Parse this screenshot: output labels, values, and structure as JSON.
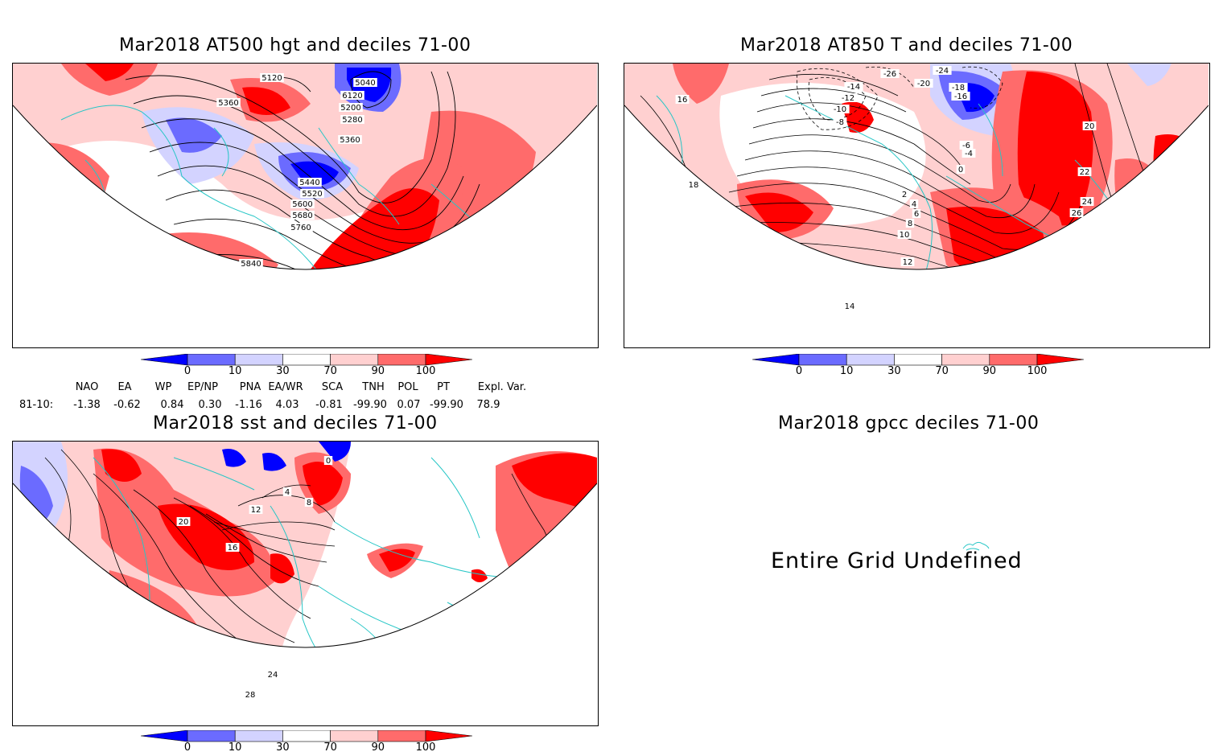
{
  "panels": {
    "hgt500": {
      "title": "Mar2018 AT500 hgt and deciles 71-00",
      "contour_labels": [
        "5040",
        "5120",
        "6120",
        "5200",
        "5280",
        "5360",
        "5360",
        "5440",
        "5520",
        "5600",
        "5680",
        "5760",
        "5840"
      ]
    },
    "t850": {
      "title": "Mar2018 AT850 T and deciles 71-00",
      "contour_labels": [
        "-26",
        "-24",
        "-20",
        "-18",
        "-16",
        "-14",
        "-12",
        "-10",
        "-8",
        "-6",
        "-4",
        "0",
        "2",
        "4",
        "6",
        "8",
        "10",
        "12",
        "14",
        "16",
        "18",
        "20",
        "22",
        "24",
        "26"
      ]
    },
    "sst": {
      "title": "Mar2018 sst and deciles 71-00",
      "contour_labels": [
        "0",
        "4",
        "8",
        "12",
        "16",
        "20",
        "24",
        "28"
      ]
    },
    "gpcc": {
      "title": "Mar2018 gpcc deciles 71-00",
      "message": "Entire Grid Undefined"
    }
  },
  "colorbar": {
    "ticks": [
      "0",
      "10",
      "30",
      "70",
      "90",
      "100"
    ],
    "colors": [
      "#0000ff",
      "#6b6bff",
      "#d3d3ff",
      "#ffffff",
      "#ffd0d0",
      "#ff6b6b",
      "#ff0000"
    ]
  },
  "indices": {
    "headers": [
      "NAO",
      "EA",
      "WP",
      "EP/NP",
      "PNA",
      "EA/WR",
      "SCA",
      "TNH",
      "POL",
      "PT",
      "Expl. Var."
    ],
    "row_label": "81-10:",
    "values": [
      "-1.38",
      "-0.62",
      "0.84",
      "0.30",
      "-1.16",
      "4.03",
      "-0.81",
      "-99.90",
      "0.07",
      "-99.90",
      "78.9"
    ]
  }
}
